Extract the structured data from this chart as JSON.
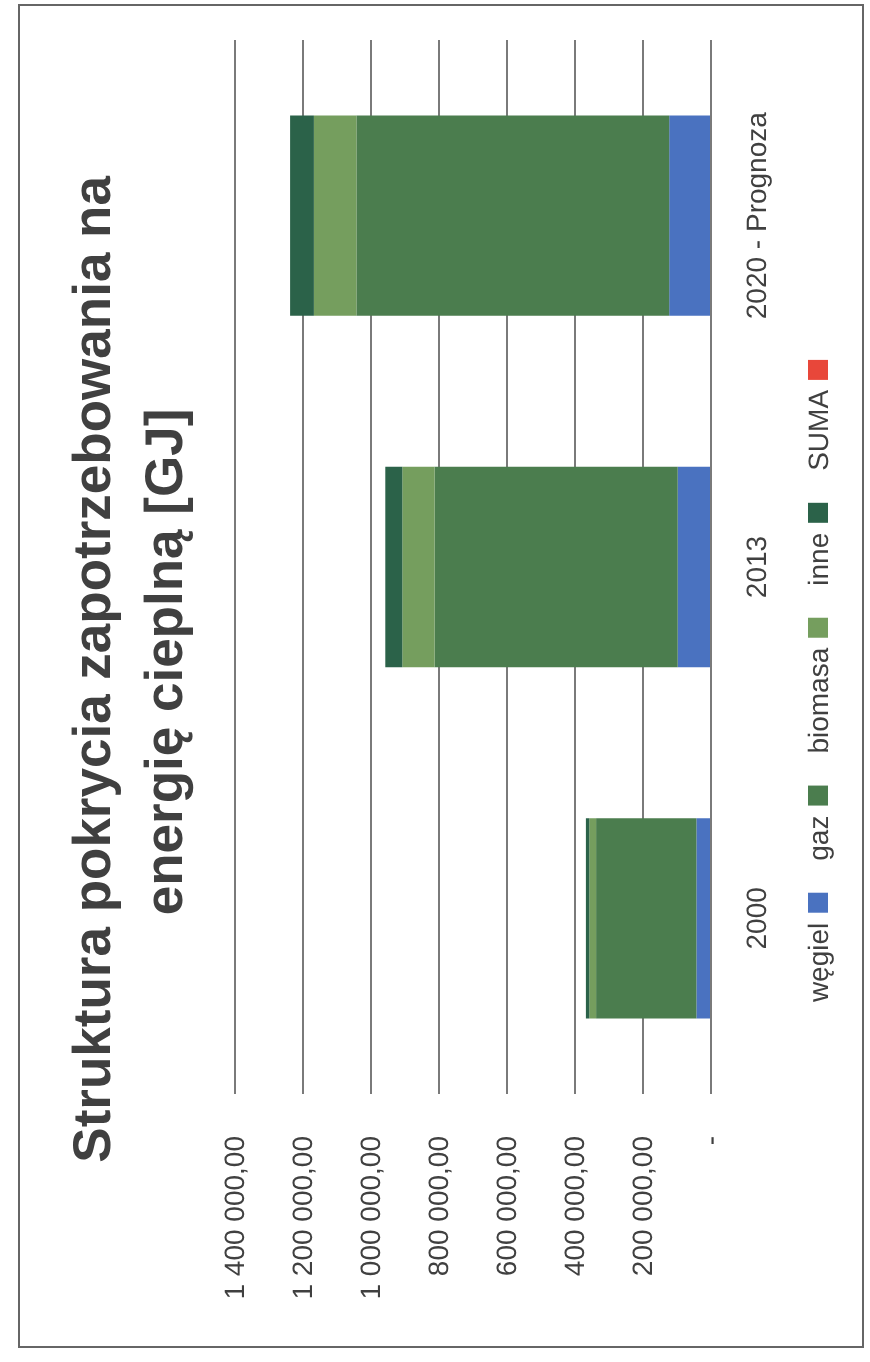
{
  "chart_data": {
    "type": "bar",
    "orientation": "horizontal",
    "stacked": true,
    "title": "Struktura pokrycia zapotrzebowania na energię cieplną [GJ]",
    "categories": [
      "2020 - Prognoza",
      "2013",
      "2000"
    ],
    "series": [
      {
        "name": "węgiel",
        "color": "#4a72c0",
        "values": [
          120000,
          95000,
          40000
        ]
      },
      {
        "name": "gaz",
        "color": "#4b7d4e",
        "values": [
          920000,
          715000,
          295000
        ]
      },
      {
        "name": "biomasa",
        "color": "#759e5e",
        "values": [
          125000,
          95000,
          20000
        ]
      },
      {
        "name": "inne",
        "color": "#2b6249",
        "values": [
          70000,
          50000,
          10000
        ]
      },
      {
        "name": "SUMA",
        "color": "#e8473a",
        "values": [
          null,
          null,
          null
        ]
      }
    ],
    "xlim": [
      1400000,
      0
    ],
    "xticks": [
      {
        "value": 0,
        "label": "-"
      },
      {
        "value": 200000,
        "label": "200 000,00"
      },
      {
        "value": 400000,
        "label": "400 000,00"
      },
      {
        "value": 600000,
        "label": "600 000,00"
      },
      {
        "value": 800000,
        "label": "800 000,00"
      },
      {
        "value": 1000000,
        "label": "1 000 000,00"
      },
      {
        "value": 1200000,
        "label": "1 200 000,00"
      },
      {
        "value": 1400000,
        "label": "1 400 000,00"
      }
    ],
    "grid": "x",
    "legend": "right"
  }
}
